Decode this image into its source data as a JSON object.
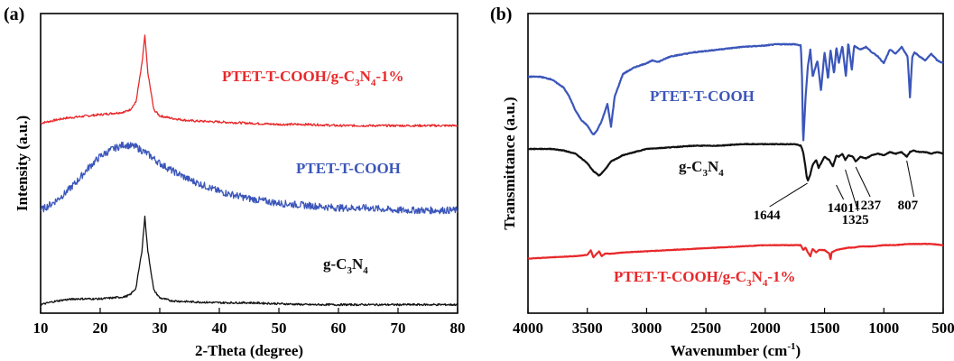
{
  "chart_data": [
    {
      "type": "line",
      "panel_label": "(a)",
      "xlabel": "2-Theta (degree)",
      "ylabel": "Intensity (a.u.)",
      "xlim": [
        10,
        80
      ],
      "xticks": [
        "10",
        "20",
        "30",
        "40",
        "50",
        "60",
        "70",
        "80"
      ],
      "grid": false,
      "series": [
        {
          "label_main": "PTET-T-COOH/g-C",
          "label_sub1": "3",
          "label_mid": "N",
          "label_sub2": "4",
          "label_tail": "-1%",
          "color": "#e8282a",
          "x": [
            10,
            12,
            14,
            16,
            18,
            20,
            22,
            24,
            25,
            26,
            27,
            27.5,
            28,
            29,
            30,
            32,
            35,
            40,
            45,
            50,
            55,
            60,
            65,
            70,
            75,
            80
          ],
          "y": [
            0.07,
            0.09,
            0.11,
            0.12,
            0.13,
            0.14,
            0.15,
            0.16,
            0.18,
            0.24,
            0.55,
            0.78,
            0.48,
            0.18,
            0.13,
            0.11,
            0.09,
            0.08,
            0.07,
            0.06,
            0.06,
            0.05,
            0.05,
            0.05,
            0.05,
            0.05
          ]
        },
        {
          "label": "PTET-T-COOH",
          "color": "#3b56ba",
          "x": [
            10,
            12,
            14,
            16,
            18,
            20,
            22,
            24,
            26,
            28,
            30,
            32,
            35,
            40,
            45,
            50,
            55,
            60,
            65,
            70,
            75,
            80
          ],
          "y": [
            0.05,
            0.08,
            0.12,
            0.17,
            0.23,
            0.28,
            0.31,
            0.33,
            0.32,
            0.29,
            0.25,
            0.22,
            0.18,
            0.13,
            0.1,
            0.08,
            0.07,
            0.06,
            0.06,
            0.05,
            0.05,
            0.05
          ]
        },
        {
          "label_main": "g-C",
          "label_sub1": "3",
          "label_mid": "N",
          "label_sub2": "4",
          "color": "#111111",
          "x": [
            10,
            12,
            14,
            16,
            18,
            20,
            22,
            24,
            25,
            26,
            27,
            27.5,
            28,
            29,
            30,
            32,
            35,
            40,
            45,
            50,
            55,
            60,
            65,
            70,
            75,
            80
          ],
          "y": [
            0.05,
            0.08,
            0.1,
            0.11,
            0.11,
            0.11,
            0.12,
            0.13,
            0.15,
            0.22,
            0.6,
            0.95,
            0.6,
            0.2,
            0.12,
            0.09,
            0.08,
            0.07,
            0.07,
            0.06,
            0.05,
            0.05,
            0.05,
            0.05,
            0.05,
            0.05
          ]
        }
      ]
    },
    {
      "type": "line",
      "panel_label": "(b)",
      "xlabel_main": "Wavenumber (cm",
      "xlabel_sup": "-1",
      "xlabel_tail": ")",
      "ylabel": "Transmittance (a.u.)",
      "xlim": [
        4000,
        500
      ],
      "xticks": [
        "4000",
        "3500",
        "3000",
        "2500",
        "2000",
        "1500",
        "1000",
        "500"
      ],
      "grid": false,
      "series": [
        {
          "label": "PTET-T-COOH",
          "color": "#3b56ba",
          "x": [
            4000,
            3900,
            3800,
            3700,
            3650,
            3600,
            3550,
            3500,
            3450,
            3420,
            3380,
            3330,
            3300,
            3270,
            3200,
            3100,
            3000,
            2950,
            2900,
            2800,
            2600,
            2400,
            2200,
            2000,
            1900,
            1800,
            1750,
            1700,
            1690,
            1680,
            1660,
            1640,
            1620,
            1600,
            1560,
            1530,
            1500,
            1470,
            1450,
            1420,
            1400,
            1380,
            1350,
            1320,
            1300,
            1270,
            1250,
            1200,
            1150,
            1100,
            1050,
            1000,
            950,
            900,
            850,
            800,
            780,
            760,
            740,
            700,
            650,
            600,
            550,
            500
          ],
          "y": [
            0.7,
            0.7,
            0.68,
            0.62,
            0.55,
            0.45,
            0.38,
            0.34,
            0.27,
            0.3,
            0.37,
            0.5,
            0.33,
            0.55,
            0.72,
            0.77,
            0.8,
            0.82,
            0.81,
            0.85,
            0.88,
            0.9,
            0.92,
            0.93,
            0.94,
            0.94,
            0.94,
            0.93,
            0.7,
            0.2,
            0.55,
            0.78,
            0.9,
            0.7,
            0.82,
            0.6,
            0.88,
            0.68,
            0.9,
            0.72,
            0.92,
            0.8,
            0.93,
            0.7,
            0.95,
            0.75,
            0.93,
            0.9,
            0.92,
            0.88,
            0.85,
            0.8,
            0.9,
            0.87,
            0.92,
            0.85,
            0.55,
            0.85,
            0.88,
            0.85,
            0.82,
            0.87,
            0.82,
            0.8
          ]
        },
        {
          "label_main": "g-C",
          "label_sub1": "3",
          "label_mid": "N",
          "label_sub2": "4",
          "color": "#111111",
          "x": [
            4000,
            3800,
            3700,
            3600,
            3500,
            3450,
            3400,
            3350,
            3300,
            3200,
            3100,
            3000,
            2800,
            2600,
            2400,
            2200,
            2000,
            1800,
            1750,
            1700,
            1680,
            1660,
            1650,
            1640,
            1620,
            1600,
            1570,
            1550,
            1500,
            1460,
            1430,
            1400,
            1380,
            1350,
            1325,
            1300,
            1260,
            1237,
            1200,
            1150,
            1100,
            1050,
            1000,
            950,
            900,
            850,
            807,
            780,
            750,
            700,
            650,
            600,
            550,
            500
          ],
          "y": [
            0.52,
            0.52,
            0.51,
            0.49,
            0.43,
            0.38,
            0.35,
            0.39,
            0.44,
            0.48,
            0.5,
            0.52,
            0.53,
            0.54,
            0.54,
            0.55,
            0.55,
            0.55,
            0.55,
            0.54,
            0.5,
            0.4,
            0.34,
            0.32,
            0.36,
            0.42,
            0.45,
            0.4,
            0.47,
            0.45,
            0.41,
            0.48,
            0.47,
            0.49,
            0.45,
            0.48,
            0.47,
            0.44,
            0.47,
            0.46,
            0.48,
            0.49,
            0.48,
            0.5,
            0.49,
            0.5,
            0.47,
            0.5,
            0.51,
            0.5,
            0.5,
            0.49,
            0.5,
            0.49
          ]
        },
        {
          "label_main": "PTET-T-COOH/g-C",
          "label_sub1": "3",
          "label_mid": "N",
          "label_sub2": "4",
          "label_tail": "-1%",
          "color": "#e8282a",
          "x": [
            4000,
            3800,
            3600,
            3500,
            3470,
            3450,
            3420,
            3400,
            3380,
            3350,
            3300,
            3200,
            3000,
            2800,
            2600,
            2400,
            2200,
            2000,
            1800,
            1700,
            1680,
            1660,
            1640,
            1620,
            1600,
            1570,
            1550,
            1500,
            1460,
            1450,
            1440,
            1400,
            1350,
            1300,
            1250,
            1200,
            1100,
            1000,
            900,
            800,
            700,
            600,
            500
          ],
          "y": [
            0.1,
            0.11,
            0.12,
            0.13,
            0.17,
            0.11,
            0.14,
            0.16,
            0.12,
            0.14,
            0.14,
            0.15,
            0.16,
            0.17,
            0.18,
            0.19,
            0.2,
            0.21,
            0.21,
            0.21,
            0.17,
            0.19,
            0.15,
            0.12,
            0.18,
            0.15,
            0.17,
            0.17,
            0.14,
            0.09,
            0.15,
            0.17,
            0.18,
            0.19,
            0.19,
            0.2,
            0.2,
            0.21,
            0.21,
            0.22,
            0.22,
            0.22,
            0.21
          ]
        }
      ],
      "peak_labels": [
        {
          "text": "1644",
          "x": 1644
        },
        {
          "text": "1401",
          "x": 1401
        },
        {
          "text": "1325",
          "x": 1325
        },
        {
          "text": "1237",
          "x": 1237
        },
        {
          "text": "807",
          "x": 807
        }
      ]
    }
  ]
}
